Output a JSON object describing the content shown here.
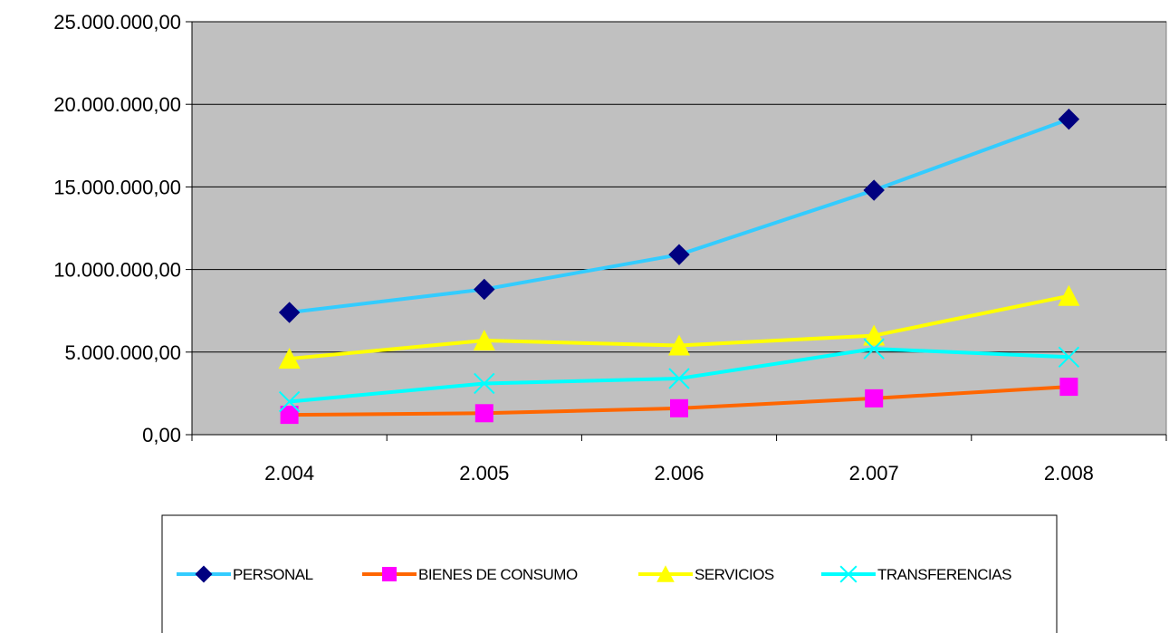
{
  "chart_data": {
    "type": "line",
    "categories": [
      "2.004",
      "2.005",
      "2.006",
      "2.007",
      "2.008"
    ],
    "ylim": [
      0,
      25000000
    ],
    "yticks": [
      0,
      5000000,
      10000000,
      15000000,
      20000000,
      25000000
    ],
    "ytick_labels": [
      "0,00",
      "5.000.000,00",
      "10.000.000,00",
      "15.000.000,00",
      "20.000.000,00",
      "25.000.000,00"
    ],
    "grid": true,
    "legend_position": "bottom",
    "plot_background": "#c0c0c0",
    "series": [
      {
        "name": "PERSONAL",
        "values": [
          7400000,
          8800000,
          10900000,
          14800000,
          19100000
        ],
        "line_color": "#33ccff",
        "marker": "diamond",
        "marker_color": "#000080"
      },
      {
        "name": "BIENES DE CONSUMO",
        "values": [
          1200000,
          1300000,
          1600000,
          2200000,
          2900000
        ],
        "line_color": "#ff6600",
        "marker": "square",
        "marker_color": "#ff00ff"
      },
      {
        "name": "SERVICIOS",
        "values": [
          4600000,
          5700000,
          5400000,
          6000000,
          8400000
        ],
        "line_color": "#ffff00",
        "marker": "triangle",
        "marker_color": "#ffff00"
      },
      {
        "name": "TRANSFERENCIAS",
        "values": [
          2000000,
          3100000,
          3400000,
          5200000,
          4700000
        ],
        "line_color": "#00ffff",
        "marker": "x",
        "marker_color": "#00ffff"
      }
    ]
  }
}
